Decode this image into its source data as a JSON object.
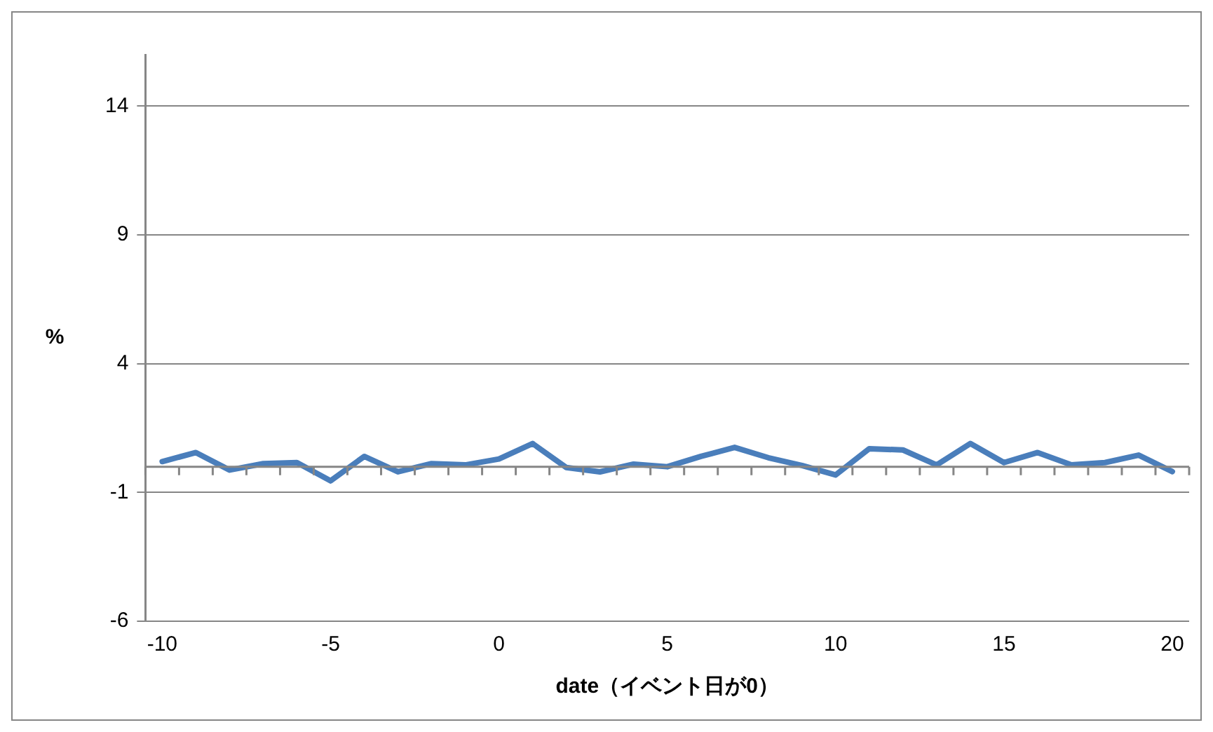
{
  "chart_data": {
    "type": "line",
    "xlabel": "date（イベント日が0）",
    "ylabel": "%",
    "categories": [
      "-10",
      null,
      null,
      null,
      null,
      "-5",
      null,
      null,
      null,
      null,
      "0",
      null,
      null,
      null,
      null,
      "5",
      null,
      null,
      null,
      null,
      "10",
      null,
      null,
      null,
      null,
      "15",
      null,
      null,
      null,
      null,
      "20"
    ],
    "series": [
      {
        "color": "#4a7ebb",
        "values": [
          0.2,
          0.55,
          -0.13,
          0.12,
          0.16,
          -0.55,
          0.4,
          -0.2,
          0.12,
          0.07,
          0.3,
          0.9,
          -0.03,
          -0.2,
          0.1,
          0.0,
          0.4,
          0.75,
          0.35,
          0.05,
          -0.32,
          0.7,
          0.65,
          0.07,
          0.9,
          0.16,
          0.55,
          0.07,
          0.16,
          0.45,
          -0.19
        ]
      }
    ],
    "ylim": [
      -6,
      16
    ],
    "yticks": [
      -6,
      -1,
      4,
      9,
      14
    ],
    "grid": "y",
    "legend": false,
    "marker": "none",
    "line_style": "solid"
  }
}
